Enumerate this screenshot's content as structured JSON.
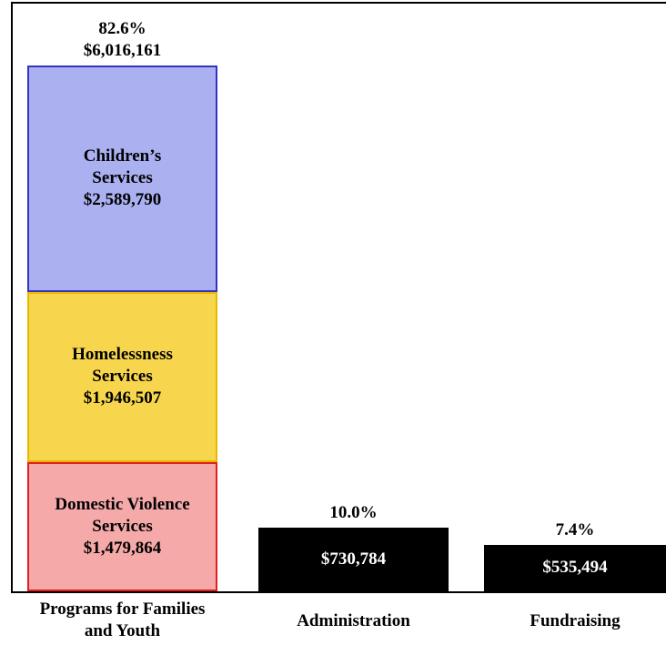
{
  "chart_data": {
    "type": "stacked_bar",
    "categories": [
      "Programs for Families and Youth",
      "Administration",
      "Fundraising"
    ],
    "series": [
      {
        "name": "Domestic Violence Services",
        "color": "#f5a9a9",
        "border": "#e02020",
        "values": [
          1479864,
          null,
          null
        ],
        "value_labels": [
          "$1,479,864",
          null,
          null
        ]
      },
      {
        "name": "Homelessness Services",
        "color": "#f7d54c",
        "border": "#e8b800",
        "values": [
          1946507,
          null,
          null
        ],
        "value_labels": [
          "$1,946,507",
          null,
          null
        ]
      },
      {
        "name": "Children’s Services",
        "color": "#aab0f0",
        "border": "#3434c0",
        "values": [
          2589790,
          null,
          null
        ],
        "value_labels": [
          "$2,589,790",
          null,
          null
        ]
      },
      {
        "color": "#000000",
        "values": [
          null,
          730784,
          535494
        ],
        "value_labels": [
          null,
          "$730,784",
          "$535,494"
        ]
      }
    ],
    "shares": [
      {
        "value": 82.6,
        "label": "82.6%"
      },
      {
        "value": 10.0,
        "label": "10.0%"
      },
      {
        "value": 7.4,
        "label": "7.4%"
      }
    ],
    "totals": [
      {
        "value": 6016161,
        "label": "$6,016,161"
      },
      null,
      null
    ]
  }
}
